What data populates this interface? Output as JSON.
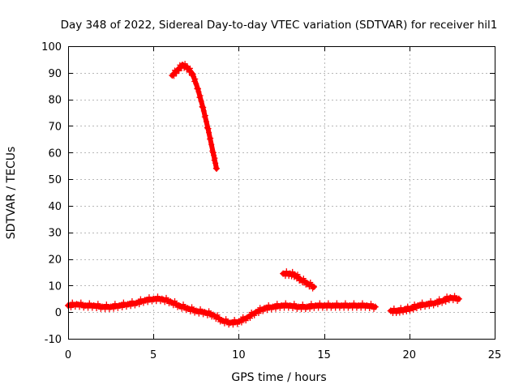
{
  "chart_data": {
    "type": "scatter",
    "title": "Day 348 of 2022, Sidereal Day-to-day VTEC variation (SDTVAR) for receiver hil1",
    "xlabel": "GPS time / hours",
    "ylabel": "SDTVAR / TECUs",
    "xlim": [
      0,
      25
    ],
    "ylim": [
      -10,
      100
    ],
    "xticks": [
      "0",
      "5",
      "10",
      "15",
      "20",
      "25"
    ],
    "yticks": [
      "-10",
      "0",
      "10",
      "20",
      "30",
      "40",
      "50",
      "60",
      "70",
      "80",
      "90",
      "100"
    ],
    "grid": true,
    "marker": "+",
    "series": [
      {
        "color": "#ff0000",
        "segments": [
          [
            [
              0,
              2.5
            ],
            [
              0.5,
              3
            ],
            [
              1,
              2.5
            ],
            [
              1.5,
              2.5
            ],
            [
              2,
              2
            ],
            [
              2.5,
              2
            ],
            [
              3,
              2.5
            ],
            [
              3.5,
              3
            ],
            [
              4,
              3.5
            ],
            [
              4.5,
              4.5
            ],
            [
              5,
              5
            ],
            [
              5.5,
              5
            ],
            [
              6,
              4
            ],
            [
              6.5,
              2.5
            ],
            [
              7,
              1.5
            ],
            [
              7.5,
              0.5
            ],
            [
              8,
              0
            ],
            [
              8.5,
              -1
            ],
            [
              9,
              -3
            ],
            [
              9.5,
              -4
            ],
            [
              10,
              -3.5
            ],
            [
              10.5,
              -2
            ],
            [
              11,
              0
            ],
            [
              11.5,
              1.5
            ],
            [
              12,
              2
            ],
            [
              12.5,
              2.5
            ],
            [
              13,
              2.5
            ],
            [
              13.5,
              2
            ],
            [
              14,
              2
            ],
            [
              14.5,
              2.5
            ],
            [
              15,
              2.5
            ],
            [
              15.5,
              2.5
            ],
            [
              16,
              2.5
            ],
            [
              16.5,
              2.5
            ],
            [
              17,
              2.5
            ],
            [
              17.5,
              2.5
            ],
            [
              18,
              2
            ]
          ],
          [
            [
              6.1,
              89
            ],
            [
              6.4,
              91
            ],
            [
              6.7,
              93
            ],
            [
              7,
              92
            ],
            [
              7.3,
              89.5
            ],
            [
              7.6,
              84
            ],
            [
              7.9,
              77
            ],
            [
              8.2,
              69
            ],
            [
              8.5,
              60
            ],
            [
              8.7,
              54
            ]
          ],
          [
            [
              12.6,
              14.5
            ],
            [
              13,
              14.5
            ],
            [
              13.3,
              14
            ],
            [
              13.6,
              12.5
            ],
            [
              14,
              11
            ],
            [
              14.4,
              9.5
            ]
          ],
          [
            [
              18.9,
              0.5
            ],
            [
              19.3,
              0.5
            ],
            [
              19.7,
              1
            ],
            [
              20.1,
              1.5
            ],
            [
              20.5,
              2.5
            ],
            [
              21,
              3
            ],
            [
              21.5,
              3.5
            ],
            [
              22,
              4.5
            ],
            [
              22.4,
              5.5
            ],
            [
              22.9,
              5
            ]
          ]
        ]
      }
    ]
  }
}
